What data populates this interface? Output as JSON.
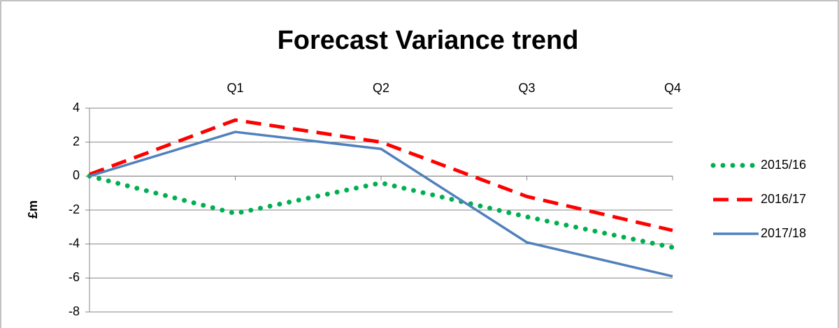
{
  "chart_data": {
    "type": "line",
    "title": "Forecast Variance trend",
    "ylabel": "£m",
    "categories": [
      null,
      "Q1",
      "Q2",
      "Q3",
      "Q4"
    ],
    "series": [
      {
        "name": "2015/16",
        "color": "#00b050",
        "style": "dotted",
        "values": [
          0,
          -2.2,
          -0.4,
          -2.4,
          -4.2
        ]
      },
      {
        "name": "2016/17",
        "color": "#ff0000",
        "style": "dashed",
        "values": [
          0.1,
          3.3,
          2.0,
          -1.2,
          -3.2
        ]
      },
      {
        "name": "2017/18",
        "color": "#4f81bd",
        "style": "solid",
        "values": [
          0,
          2.6,
          1.6,
          -3.9,
          -5.9
        ]
      }
    ],
    "ylim": [
      -8,
      4
    ],
    "yticks": [
      -8,
      -6,
      -4,
      -2,
      0,
      2,
      4
    ],
    "grid": true,
    "legend": "right"
  }
}
